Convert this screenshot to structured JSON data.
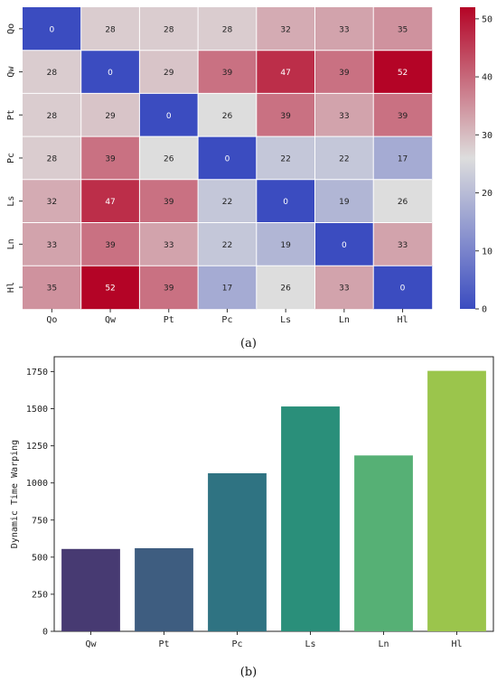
{
  "chart_data": [
    {
      "type": "heatmap",
      "panel_label": "(a)",
      "categories": [
        "Qo",
        "Qw",
        "Pt",
        "Pc",
        "Ls",
        "Ln",
        "Hl"
      ],
      "matrix": [
        [
          0,
          28,
          28,
          28,
          32,
          33,
          35
        ],
        [
          28,
          0,
          29,
          39,
          47,
          39,
          52
        ],
        [
          28,
          29,
          0,
          26,
          39,
          33,
          39
        ],
        [
          28,
          39,
          26,
          0,
          22,
          22,
          17
        ],
        [
          32,
          47,
          39,
          22,
          0,
          19,
          26
        ],
        [
          33,
          39,
          33,
          22,
          19,
          0,
          33
        ],
        [
          35,
          52,
          39,
          17,
          26,
          33,
          0
        ]
      ],
      "colorbar": {
        "min": 0,
        "max": 52,
        "ticks": [
          0,
          10,
          20,
          30,
          40,
          50
        ]
      },
      "colormap": "coolwarm",
      "colors": {
        "low": "#3b4cc0",
        "mid": "#dddddd",
        "high": "#b40426"
      }
    },
    {
      "type": "bar",
      "panel_label": "(b)",
      "categories": [
        "Qw",
        "Pt",
        "Pc",
        "Ls",
        "Ln",
        "Hl"
      ],
      "values": [
        555,
        560,
        1065,
        1515,
        1185,
        1755
      ],
      "ylabel": "Dynamic Time Warping",
      "ylim": [
        0,
        1850
      ],
      "yticks": [
        0,
        250,
        500,
        750,
        1000,
        1250,
        1500,
        1750
      ],
      "colors": [
        "#473a72",
        "#3e5d80",
        "#2f7382",
        "#2a8f7a",
        "#56b075",
        "#9bc54c"
      ]
    }
  ]
}
